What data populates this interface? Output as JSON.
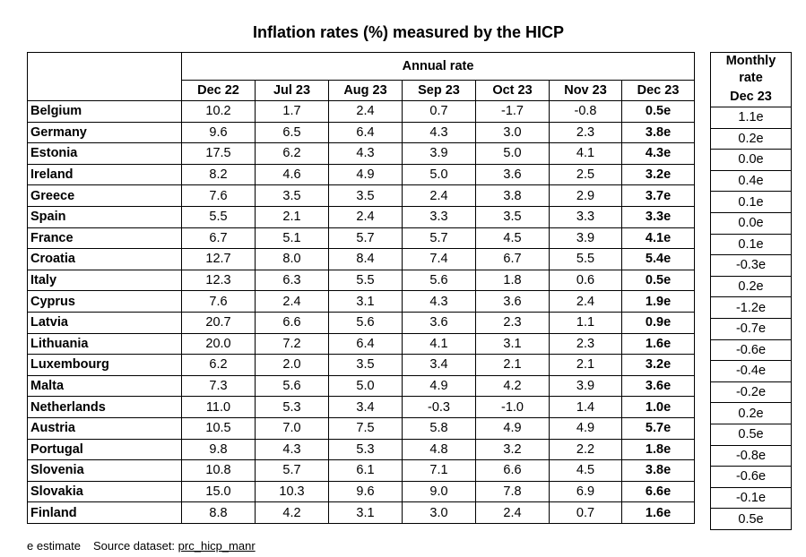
{
  "title": "Inflation rates (%) measured by the HICP",
  "annual_header": "Annual rate",
  "monthly_header_line1": "Monthly",
  "monthly_header_line2": "rate",
  "monthly_month": "Dec 23",
  "months": [
    "Dec 22",
    "Jul 23",
    "Aug 23",
    "Sep 23",
    "Oct 23",
    "Nov 23",
    "Dec 23"
  ],
  "rows": [
    {
      "country": "Belgium",
      "values": [
        "10.2",
        "1.7",
        "2.4",
        "0.7",
        "-1.7",
        "-0.8",
        "0.5e"
      ],
      "monthly": "1.1e"
    },
    {
      "country": "Germany",
      "values": [
        "9.6",
        "6.5",
        "6.4",
        "4.3",
        "3.0",
        "2.3",
        "3.8e"
      ],
      "monthly": "0.2e"
    },
    {
      "country": "Estonia",
      "values": [
        "17.5",
        "6.2",
        "4.3",
        "3.9",
        "5.0",
        "4.1",
        "4.3e"
      ],
      "monthly": "0.0e"
    },
    {
      "country": "Ireland",
      "values": [
        "8.2",
        "4.6",
        "4.9",
        "5.0",
        "3.6",
        "2.5",
        "3.2e"
      ],
      "monthly": "0.4e"
    },
    {
      "country": "Greece",
      "values": [
        "7.6",
        "3.5",
        "3.5",
        "2.4",
        "3.8",
        "2.9",
        "3.7e"
      ],
      "monthly": "0.1e"
    },
    {
      "country": "Spain",
      "values": [
        "5.5",
        "2.1",
        "2.4",
        "3.3",
        "3.5",
        "3.3",
        "3.3e"
      ],
      "monthly": "0.0e"
    },
    {
      "country": "France",
      "values": [
        "6.7",
        "5.1",
        "5.7",
        "5.7",
        "4.5",
        "3.9",
        "4.1e"
      ],
      "monthly": "0.1e"
    },
    {
      "country": "Croatia",
      "values": [
        "12.7",
        "8.0",
        "8.4",
        "7.4",
        "6.7",
        "5.5",
        "5.4e"
      ],
      "monthly": "-0.3e"
    },
    {
      "country": "Italy",
      "values": [
        "12.3",
        "6.3",
        "5.5",
        "5.6",
        "1.8",
        "0.6",
        "0.5e"
      ],
      "monthly": "0.2e"
    },
    {
      "country": "Cyprus",
      "values": [
        "7.6",
        "2.4",
        "3.1",
        "4.3",
        "3.6",
        "2.4",
        "1.9e"
      ],
      "monthly": "-1.2e"
    },
    {
      "country": "Latvia",
      "values": [
        "20.7",
        "6.6",
        "5.6",
        "3.6",
        "2.3",
        "1.1",
        "0.9e"
      ],
      "monthly": "-0.7e"
    },
    {
      "country": "Lithuania",
      "values": [
        "20.0",
        "7.2",
        "6.4",
        "4.1",
        "3.1",
        "2.3",
        "1.6e"
      ],
      "monthly": "-0.6e"
    },
    {
      "country": "Luxembourg",
      "values": [
        "6.2",
        "2.0",
        "3.5",
        "3.4",
        "2.1",
        "2.1",
        "3.2e"
      ],
      "monthly": "-0.4e"
    },
    {
      "country": "Malta",
      "values": [
        "7.3",
        "5.6",
        "5.0",
        "4.9",
        "4.2",
        "3.9",
        "3.6e"
      ],
      "monthly": "-0.2e"
    },
    {
      "country": "Netherlands",
      "values": [
        "11.0",
        "5.3",
        "3.4",
        "-0.3",
        "-1.0",
        "1.4",
        "1.0e"
      ],
      "monthly": "0.2e"
    },
    {
      "country": "Austria",
      "values": [
        "10.5",
        "7.0",
        "7.5",
        "5.8",
        "4.9",
        "4.9",
        "5.7e"
      ],
      "monthly": "0.5e"
    },
    {
      "country": "Portugal",
      "values": [
        "9.8",
        "4.3",
        "5.3",
        "4.8",
        "3.2",
        "2.2",
        "1.8e"
      ],
      "monthly": "-0.8e"
    },
    {
      "country": "Slovenia",
      "values": [
        "10.8",
        "5.7",
        "6.1",
        "7.1",
        "6.6",
        "4.5",
        "3.8e"
      ],
      "monthly": "-0.6e"
    },
    {
      "country": "Slovakia",
      "values": [
        "15.0",
        "10.3",
        "9.6",
        "9.0",
        "7.8",
        "6.9",
        "6.6e"
      ],
      "monthly": "-0.1e"
    },
    {
      "country": "Finland",
      "values": [
        "8.8",
        "4.2",
        "3.1",
        "3.0",
        "2.4",
        "0.7",
        "1.6e"
      ],
      "monthly": "0.5e"
    }
  ],
  "footnote": {
    "estimate": "e estimate",
    "source_label": "Source dataset:",
    "source_link": "prc_hicp_manr"
  }
}
